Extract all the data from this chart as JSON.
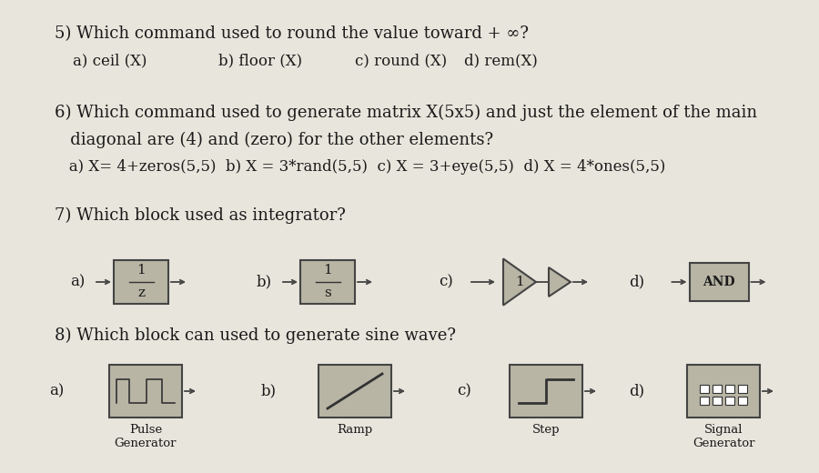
{
  "bg_color": "#d8d4c8",
  "paper_color": "#e8e5dc",
  "text_color": "#1a1a1a",
  "q5_line1": "5) Which command used to round the value toward + ∞?",
  "q5_a": "a) ceil (X)",
  "q5_b": "b) floor (X)",
  "q5_c": "c) round (X)",
  "q5_d": "d) rem(X)",
  "q6_line1": "6) Which command used to generate matrix X(5x5) and just the element of the main",
  "q6_line2": "   diagonal are (4) and (zero) for the other elements?",
  "q6_line3": "   a) X= 4+zeros(5,5)  b) X = 3*rand(5,5)  c) X = 3+eye(5,5)  d) X = 4*ones(5,5)",
  "q7_line1": "7) Which block used as integrator?",
  "q8_line1": "8) Which block can used to generate sine wave?",
  "block_fill": "#b8b5a5",
  "block_edge": "#444444",
  "line_color": "#333333"
}
